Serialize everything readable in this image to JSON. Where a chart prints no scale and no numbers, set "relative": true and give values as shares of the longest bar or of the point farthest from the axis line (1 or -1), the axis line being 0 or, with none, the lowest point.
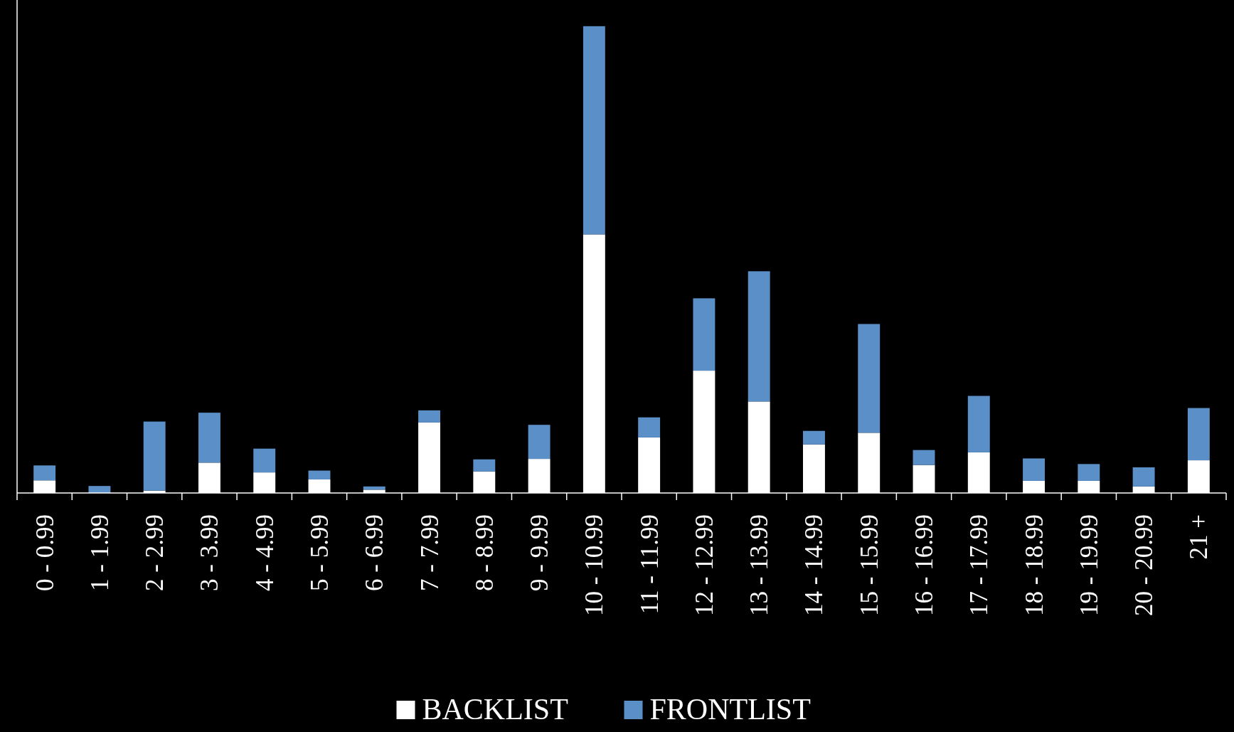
{
  "chart_data": {
    "type": "bar",
    "stacked": true,
    "relative": true,
    "legend": "bottom",
    "categories": [
      "0 - 0.99",
      "1 - 1.99",
      "2 - 2.99",
      "3 - 3.99",
      "4 - 4.99",
      "5 - 5.99",
      "6 - 6.99",
      "7 - 7.99",
      "8 - 8.99",
      "9 - 9.99",
      "10 - 10.99",
      "11 - 11.99",
      "12 - 12.99",
      "13 - 13.99",
      "14 - 14.99",
      "15 - 15.99",
      "16 - 16.99",
      "17 - 17.99",
      "18 - 18.99",
      "19 - 19.99",
      "20 - 20.99",
      "21 +"
    ],
    "series": [
      {
        "name": "BACKLIST",
        "color": "#ffffff",
        "values": [
          0.027,
          0,
          0.005,
          0.065,
          0.044,
          0.029,
          0.007,
          0.151,
          0.046,
          0.073,
          0.554,
          0.119,
          0.262,
          0.196,
          0.104,
          0.129,
          0.06,
          0.087,
          0.026,
          0.026,
          0.014,
          0.07
        ]
      },
      {
        "name": "FRONTLIST",
        "color": "#5b8fc7",
        "values": [
          0.032,
          0.015,
          0.148,
          0.107,
          0.051,
          0.019,
          0.007,
          0.026,
          0.026,
          0.073,
          0.446,
          0.043,
          0.155,
          0.279,
          0.029,
          0.233,
          0.032,
          0.121,
          0.048,
          0.036,
          0.041,
          0.112
        ]
      }
    ]
  }
}
